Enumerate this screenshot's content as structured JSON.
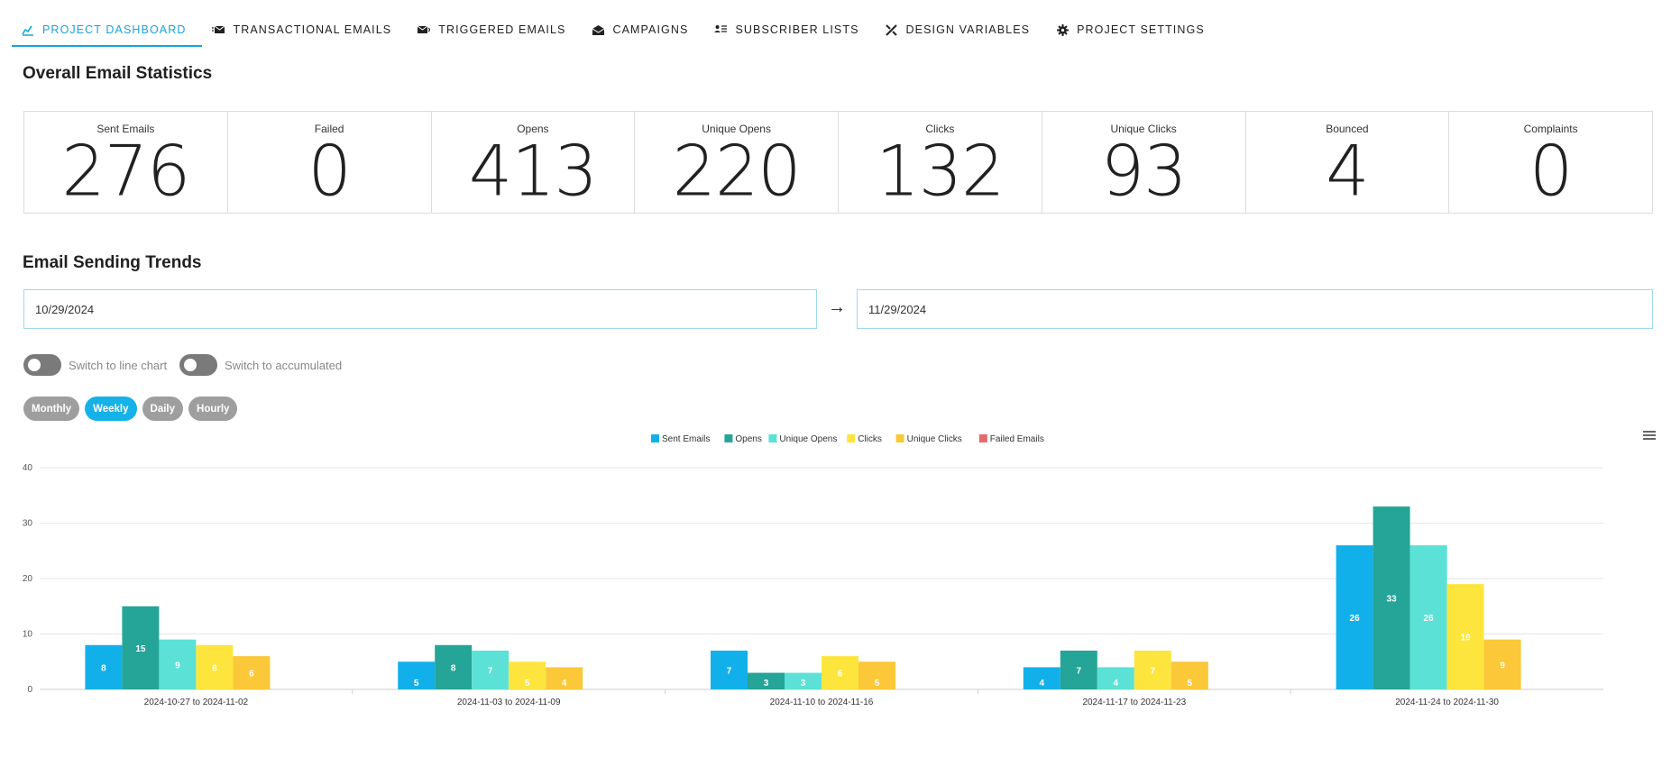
{
  "nav": {
    "tabs": [
      {
        "label": "PROJECT DASHBOARD",
        "icon": "dashboard-chart-icon",
        "active": true
      },
      {
        "label": "TRANSACTIONAL EMAILS",
        "icon": "email-fast-icon",
        "active": false
      },
      {
        "label": "TRIGGERED EMAILS",
        "icon": "email-arrow-icon",
        "active": false
      },
      {
        "label": "CAMPAIGNS",
        "icon": "email-open-icon",
        "active": false
      },
      {
        "label": "SUBSCRIBER LISTS",
        "icon": "account-list-icon",
        "active": false
      },
      {
        "label": "DESIGN VARIABLES",
        "icon": "design-tools-icon",
        "active": false
      },
      {
        "label": "PROJECT SETTINGS",
        "icon": "gear-icon",
        "active": false
      }
    ]
  },
  "stats": {
    "title": "Overall Email Statistics",
    "items": [
      {
        "label": "Sent Emails",
        "value": "276"
      },
      {
        "label": "Failed",
        "value": "0"
      },
      {
        "label": "Opens",
        "value": "413"
      },
      {
        "label": "Unique Opens",
        "value": "220"
      },
      {
        "label": "Clicks",
        "value": "132"
      },
      {
        "label": "Unique Clicks",
        "value": "93"
      },
      {
        "label": "Bounced",
        "value": "4"
      },
      {
        "label": "Complaints",
        "value": "0"
      }
    ]
  },
  "trends": {
    "title": "Email Sending Trends",
    "start_date": "10/29/2024",
    "end_date": "11/29/2024",
    "arrow": "→",
    "toggle_line": "Switch to line chart",
    "toggle_accumulated": "Switch to accumulated",
    "periods": [
      "Monthly",
      "Weekly",
      "Daily",
      "Hourly"
    ],
    "active_period": "Weekly"
  },
  "chart_data": {
    "type": "bar",
    "categories": [
      "2024-10-27 to 2024-11-02",
      "2024-11-03 to 2024-11-09",
      "2024-11-10 to 2024-11-16",
      "2024-11-17 to 2024-11-23",
      "2024-11-24 to 2024-11-30"
    ],
    "series": [
      {
        "name": "Sent Emails",
        "color": "#12b0ea",
        "values": [
          8,
          5,
          7,
          4,
          26
        ]
      },
      {
        "name": "Opens",
        "color": "#24a597",
        "values": [
          15,
          8,
          3,
          7,
          33
        ]
      },
      {
        "name": "Unique Opens",
        "color": "#5be1d6",
        "values": [
          9,
          7,
          3,
          4,
          26
        ]
      },
      {
        "name": "Clicks",
        "color": "#fde53d",
        "values": [
          8,
          5,
          6,
          7,
          19
        ]
      },
      {
        "name": "Unique Clicks",
        "color": "#fac838",
        "values": [
          6,
          4,
          5,
          5,
          9
        ]
      },
      {
        "name": "Failed Emails",
        "color": "#e66a6a",
        "values": [
          0,
          0,
          0,
          0,
          0
        ]
      }
    ],
    "ylim": [
      0,
      40
    ],
    "yticks": [
      0,
      10,
      20,
      30,
      40
    ],
    "grid": true,
    "legend": "top-center"
  }
}
